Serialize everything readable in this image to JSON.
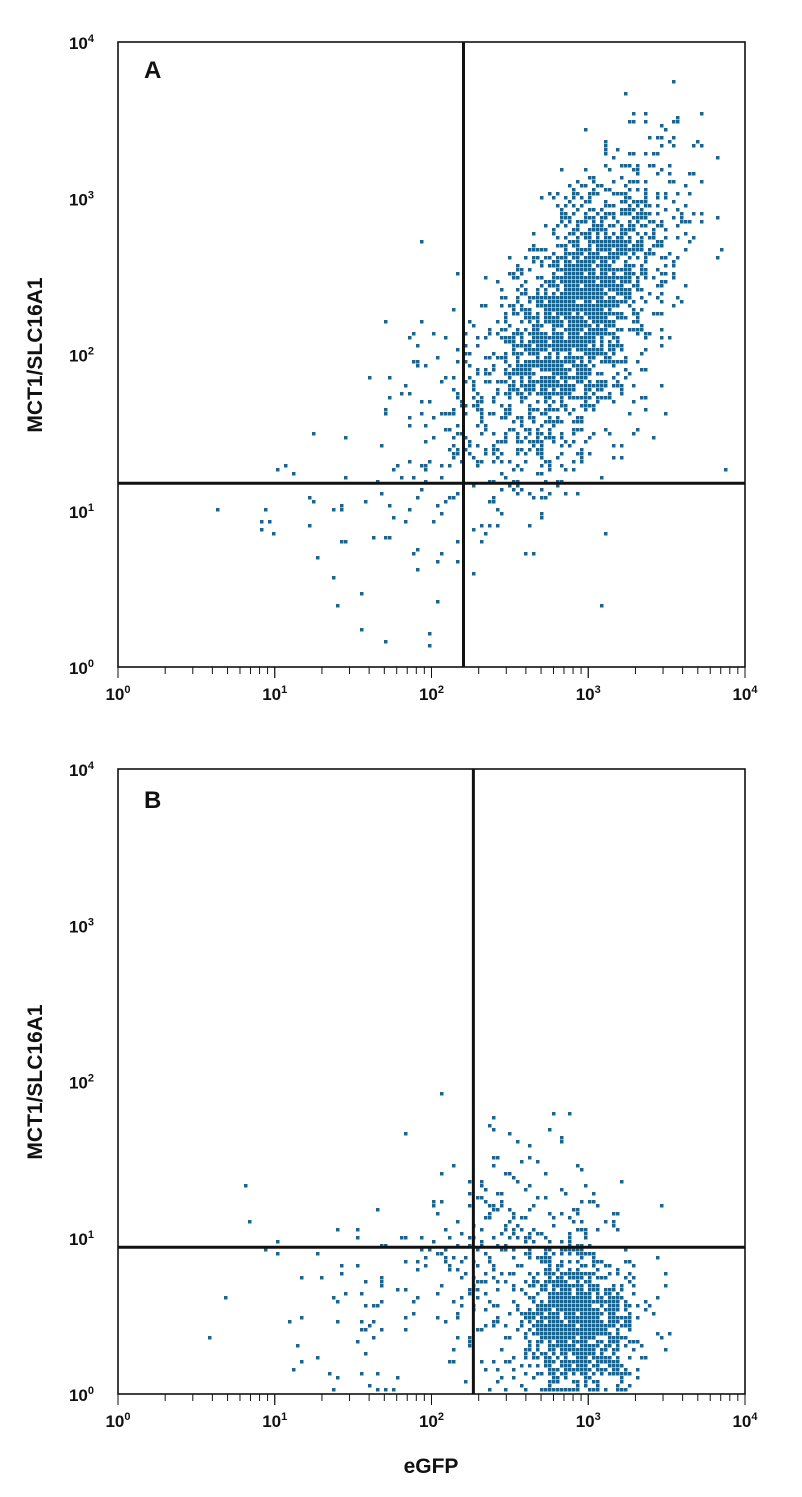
{
  "chart_data": [
    {
      "type": "scatter",
      "panel_label": "A",
      "xlabel": "",
      "ylabel": "MCT1/SLC16A1",
      "x_scale": "log",
      "y_scale": "log",
      "xlim": [
        1,
        10000
      ],
      "ylim": [
        1,
        10000
      ],
      "x_ticks": [
        {
          "b": "10",
          "e": "0"
        },
        {
          "b": "10",
          "e": "1"
        },
        {
          "b": "10",
          "e": "2"
        },
        {
          "b": "10",
          "e": "3"
        },
        {
          "b": "10",
          "e": "4"
        }
      ],
      "y_ticks": [
        {
          "b": "10",
          "e": "0"
        },
        {
          "b": "10",
          "e": "1"
        },
        {
          "b": "10",
          "e": "2"
        },
        {
          "b": "10",
          "e": "3"
        },
        {
          "b": "10",
          "e": "4"
        }
      ],
      "quadrant_gate": {
        "x": 160,
        "y": 15
      },
      "populations": [
        {
          "x_center": 900,
          "y_center": 200,
          "x_spread_decades": 0.28,
          "y_spread_decades": 0.45,
          "correlation": 0.6,
          "weight": 0.82
        },
        {
          "x_center": 350,
          "y_center": 55,
          "x_spread_decades": 0.4,
          "y_spread_decades": 0.4,
          "correlation": 0.2,
          "weight": 0.14
        },
        {
          "x_center": 100,
          "y_center": 15,
          "x_spread_decades": 0.55,
          "y_spread_decades": 0.4,
          "correlation": 0.2,
          "weight": 0.04
        }
      ],
      "point_count": 2300,
      "grid": false,
      "legend": "none",
      "point_color": "#1a6490"
    },
    {
      "type": "scatter",
      "panel_label": "B",
      "xlabel": "eGFP",
      "ylabel": "MCT1/SLC16A1",
      "x_scale": "log",
      "y_scale": "log",
      "xlim": [
        1,
        10000
      ],
      "ylim": [
        1,
        10000
      ],
      "x_ticks": [
        {
          "b": "10",
          "e": "0"
        },
        {
          "b": "10",
          "e": "1"
        },
        {
          "b": "10",
          "e": "2"
        },
        {
          "b": "10",
          "e": "3"
        },
        {
          "b": "10",
          "e": "4"
        }
      ],
      "y_ticks": [
        {
          "b": "10",
          "e": "0"
        },
        {
          "b": "10",
          "e": "1"
        },
        {
          "b": "10",
          "e": "2"
        },
        {
          "b": "10",
          "e": "3"
        },
        {
          "b": "10",
          "e": "4"
        }
      ],
      "quadrant_gate": {
        "x": 185,
        "y": 8.7
      },
      "populations": [
        {
          "x_center": 850,
          "y_center": 2.8,
          "x_spread_decades": 0.18,
          "y_spread_decades": 0.22,
          "correlation": 0.0,
          "weight": 0.68
        },
        {
          "x_center": 380,
          "y_center": 7,
          "x_spread_decades": 0.3,
          "y_spread_decades": 0.35,
          "correlation": 0.0,
          "weight": 0.24
        },
        {
          "x_center": 60,
          "y_center": 4,
          "x_spread_decades": 0.45,
          "y_spread_decades": 0.4,
          "correlation": 0.0,
          "weight": 0.08
        }
      ],
      "point_count": 1300,
      "grid": false,
      "legend": "none",
      "point_color": "#1a6490"
    }
  ]
}
